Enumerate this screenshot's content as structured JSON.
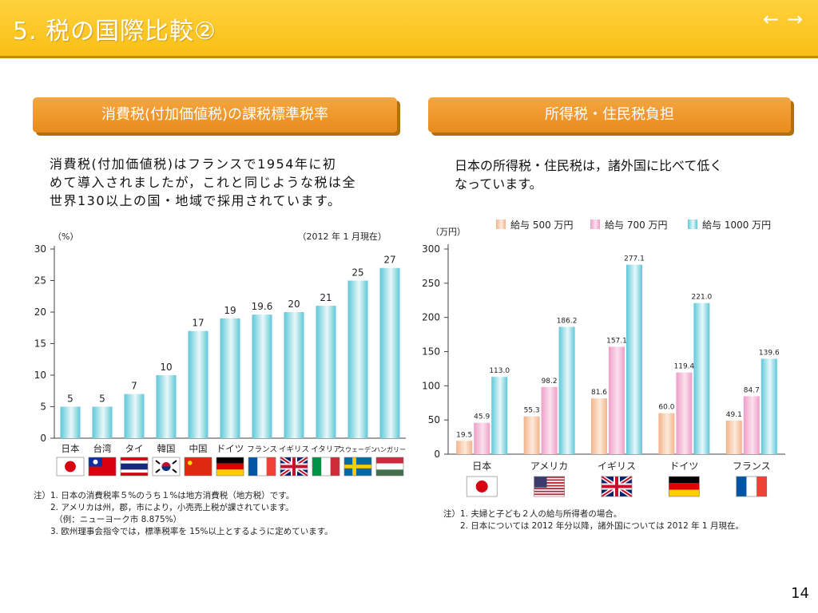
{
  "header": {
    "title": "5. 税の国際比較②"
  },
  "nav": {
    "prev_icon": "←",
    "next_icon": "→"
  },
  "left": {
    "banner": "消費税(付加価値税)の課税標準税率",
    "description": [
      "消費税(付加価値税)はフランスで1954年に初",
      "めて導入されましたが，これと同じような税は全",
      "世界130以上の国・地域で採用されています。"
    ],
    "unit": "（%）",
    "date_note": "（2012 年 1 月現在）",
    "notes": [
      "注）1. 日本の消費税率５%のうち１%は地方消費税（地方税）です。",
      "　　2. アメリカは州，郡，市により，小売売上税が課されています。",
      "　　　（例：ニューヨーク市 8.875%）",
      "　　3. 欧州理事会指令では，標準税率を 15%以上とするように定めています。"
    ]
  },
  "right": {
    "banner": "所得税・住民税負担",
    "description": [
      "日本の所得税・住民税は，諸外国に比べて低く",
      "なっています。"
    ],
    "unit": "（万円）",
    "notes": [
      "注）1. 夫婦と子ども２人の給与所得者の場合。",
      "　　2. 日本については 2012 年分以降，諸外国については 2012 年 1 月現在。"
    ]
  },
  "page_number": "14",
  "colors": {
    "header": "#f8bf16",
    "banner": "#e98b1d",
    "bar_cyan": "#5fc8d8",
    "bar_peach": "#f2b48a",
    "bar_pink": "#ef9ec8"
  },
  "chart_data": [
    {
      "type": "bar",
      "title": "",
      "categories": [
        "日本",
        "台湾",
        "タイ",
        "韓国",
        "中国",
        "ドイツ",
        "フランス",
        "イギリス",
        "イタリア",
        "スウェーデン",
        "ハンガリー"
      ],
      "values": [
        5,
        5,
        7,
        10,
        17,
        19,
        19.6,
        20,
        21,
        25,
        27
      ],
      "value_labels": [
        "5",
        "5",
        "7",
        "10",
        "17",
        "19",
        "19.6",
        "20",
        "21",
        "25",
        "27"
      ],
      "flags": [
        "japan",
        "taiwan",
        "thailand",
        "korea",
        "china",
        "germany",
        "france",
        "uk",
        "italy",
        "sweden",
        "hungary"
      ],
      "ylabel": "（%）",
      "ylim": [
        0,
        30
      ],
      "yticks": [
        0,
        5,
        10,
        15,
        20,
        25,
        30
      ],
      "grid": false
    },
    {
      "type": "bar",
      "title": "",
      "categories": [
        "日本",
        "アメリカ",
        "イギリス",
        "ドイツ",
        "フランス"
      ],
      "flags": [
        "japan",
        "usa",
        "uk",
        "germany",
        "france"
      ],
      "series": [
        {
          "name": "給与 500 万円",
          "values": [
            19.5,
            55.3,
            81.6,
            60.0,
            49.1
          ],
          "labels": [
            "19.5",
            "55.3",
            "81.6",
            "60.0",
            "49.1"
          ]
        },
        {
          "name": "給与 700 万円",
          "values": [
            45.9,
            98.2,
            157.1,
            119.4,
            84.7
          ],
          "labels": [
            "45.9",
            "98.2",
            "157.1",
            "119.4",
            "84.7"
          ]
        },
        {
          "name": "給与 1000 万円",
          "values": [
            113.0,
            186.2,
            277.1,
            221.0,
            139.6
          ],
          "labels": [
            "113.0",
            "186.2",
            "277.1",
            "221.0",
            "139.6"
          ]
        }
      ],
      "ylabel": "（万円）",
      "ylim": [
        0,
        300
      ],
      "yticks": [
        0,
        50,
        100,
        150,
        200,
        250,
        300
      ],
      "legend": "top",
      "grid": false
    }
  ]
}
